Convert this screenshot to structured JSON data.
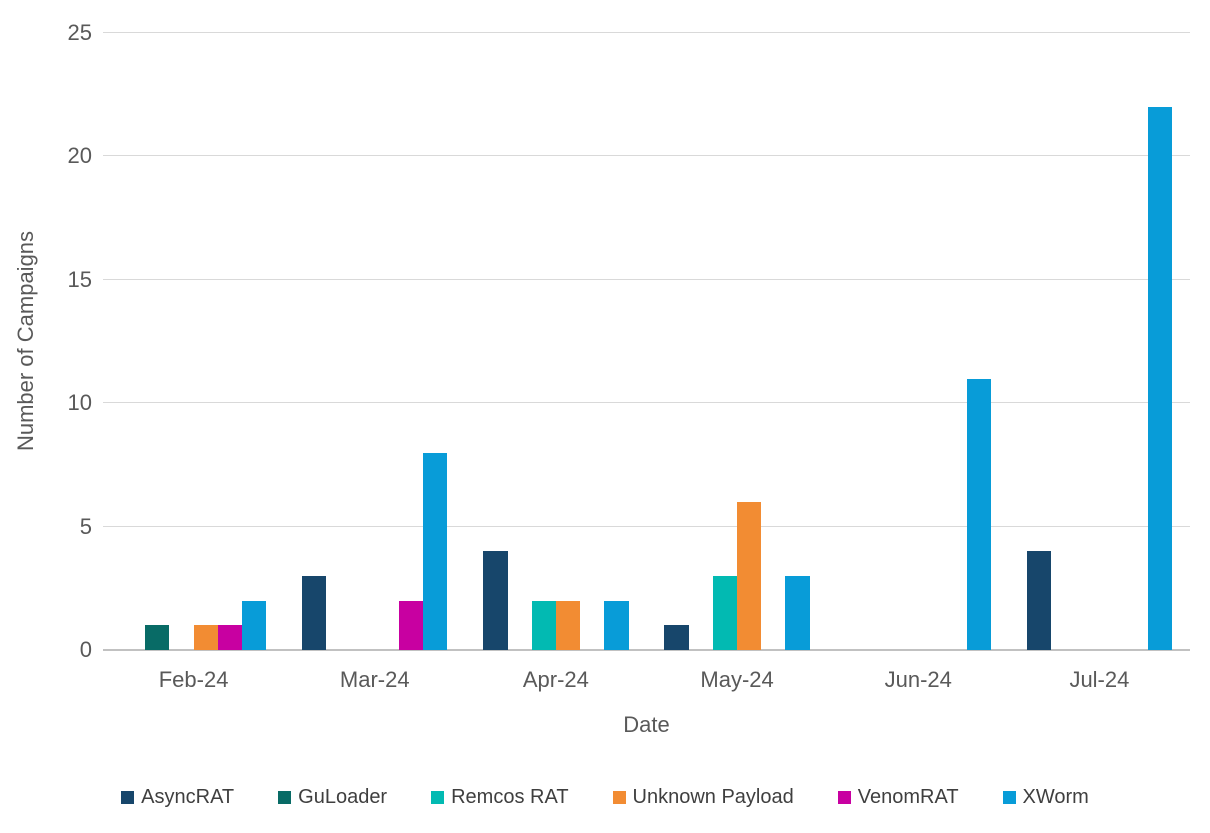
{
  "chart_data": {
    "type": "bar",
    "title": "",
    "xlabel": "Date",
    "ylabel": "Number of Campaigns",
    "ylim": [
      0,
      25
    ],
    "yticks": [
      0,
      5,
      10,
      15,
      20,
      25
    ],
    "grid": true,
    "legend_position": "bottom",
    "categories": [
      "Feb-24",
      "Mar-24",
      "Apr-24",
      "May-24",
      "Jun-24",
      "Jul-24"
    ],
    "series": [
      {
        "name": "AsyncRAT",
        "color": "#17466B",
        "values": [
          0,
          3,
          4,
          1,
          0,
          4
        ]
      },
      {
        "name": "GuLoader",
        "color": "#086B66",
        "values": [
          1,
          0,
          0,
          0,
          0,
          0
        ]
      },
      {
        "name": "Remcos RAT",
        "color": "#02BAB2",
        "values": [
          0,
          0,
          2,
          3,
          0,
          0
        ]
      },
      {
        "name": "Unknown Payload",
        "color": "#F28C33",
        "values": [
          1,
          0,
          2,
          6,
          0,
          0
        ]
      },
      {
        "name": "VenomRAT",
        "color": "#C800A1",
        "values": [
          1,
          2,
          0,
          0,
          0,
          0
        ]
      },
      {
        "name": "XWorm",
        "color": "#089CD8",
        "values": [
          2,
          8,
          2,
          3,
          11,
          22
        ]
      }
    ]
  },
  "colors": {
    "background": "#FFFFFF",
    "gridline": "#D9D9D9",
    "axis_line": "#C1C1C1",
    "axis_text": "#595959",
    "legend_text": "#3F3F3F"
  }
}
